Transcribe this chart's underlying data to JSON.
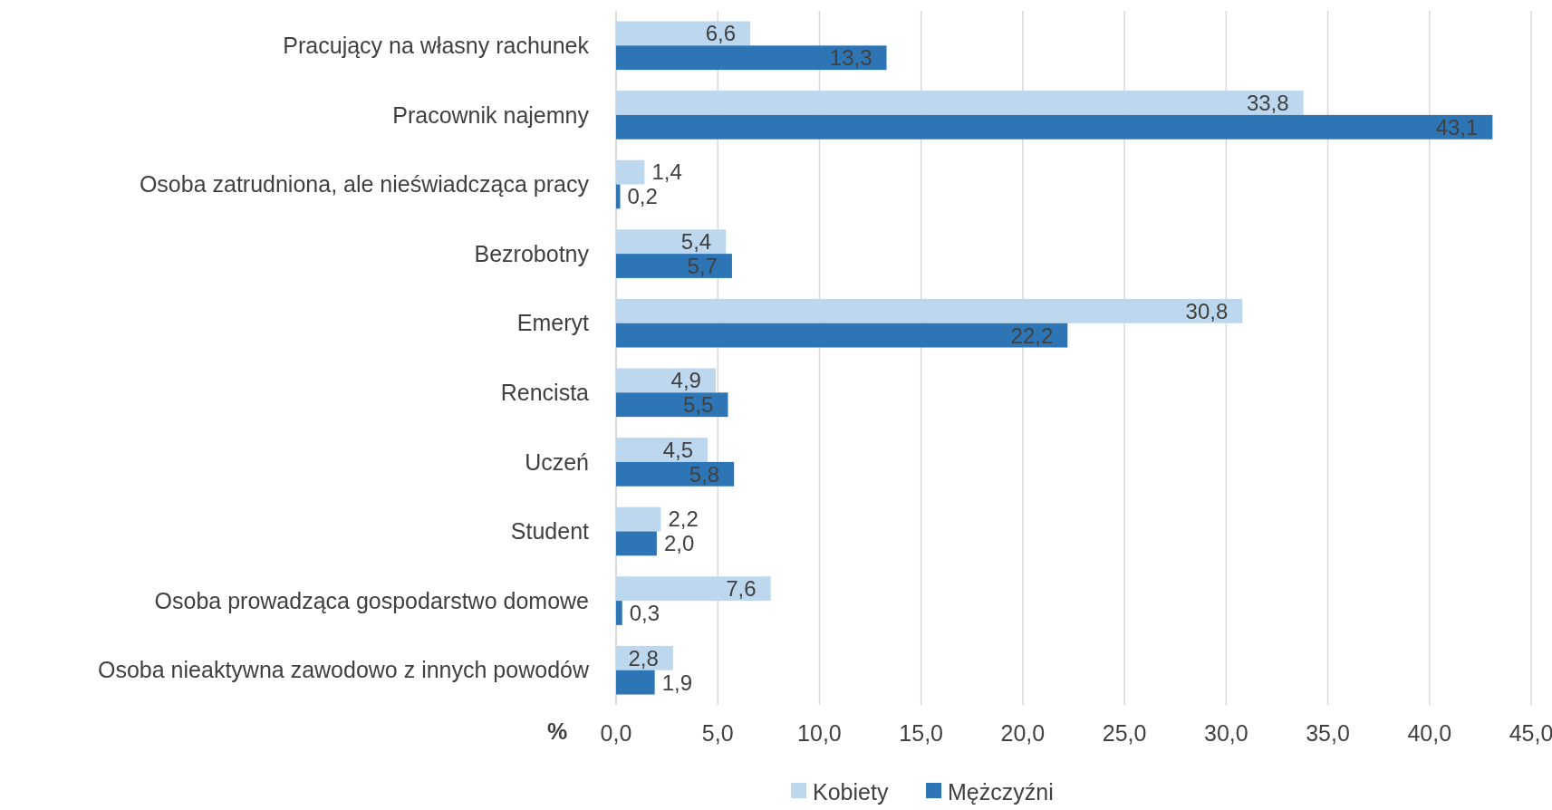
{
  "chart_data": {
    "type": "bar",
    "orientation": "horizontal",
    "xlabel": "%",
    "categories": [
      "Pracujący na własny rachunek",
      "Pracownik najemny",
      "Osoba zatrudniona, ale nieświadcząca pracy",
      "Bezrobotny",
      "Emeryt",
      "Rencista",
      "Uczeń",
      "Student",
      "Osoba prowadząca gospodarstwo domowe",
      "Osoba nieaktywna zawodowo z innych powodów"
    ],
    "series": [
      {
        "name": "Kobiety",
        "color": "#bdd7ee",
        "values": [
          6.6,
          33.8,
          1.4,
          5.4,
          30.8,
          4.9,
          4.5,
          2.2,
          7.6,
          2.8
        ],
        "value_labels": [
          "6,6",
          "33,8",
          "1,4",
          "5,4",
          "30,8",
          "4,9",
          "4,5",
          "2,2",
          "7,6",
          "2,8"
        ]
      },
      {
        "name": "Mężczyźni",
        "color": "#2e75b6",
        "values": [
          13.3,
          43.1,
          0.2,
          5.7,
          22.2,
          5.5,
          5.8,
          2.0,
          0.3,
          1.9
        ],
        "value_labels": [
          "13,3",
          "43,1",
          "0,2",
          "5,7",
          "22,2",
          "5,5",
          "5,8",
          "2,0",
          "0,3",
          "1,9"
        ]
      }
    ],
    "xlim": [
      0,
      45
    ],
    "xticks": [
      {
        "value": 0,
        "label": "0,0"
      },
      {
        "value": 5,
        "label": "5,0"
      },
      {
        "value": 10,
        "label": "10,0"
      },
      {
        "value": 15,
        "label": "15,0"
      },
      {
        "value": 20,
        "label": "20,0"
      },
      {
        "value": 25,
        "label": "25,0"
      },
      {
        "value": 30,
        "label": "30,0"
      },
      {
        "value": 35,
        "label": "35,0"
      },
      {
        "value": 40,
        "label": "40,0"
      },
      {
        "value": 45,
        "label": "45,0"
      }
    ],
    "grid": "x",
    "legend": "bottom"
  }
}
